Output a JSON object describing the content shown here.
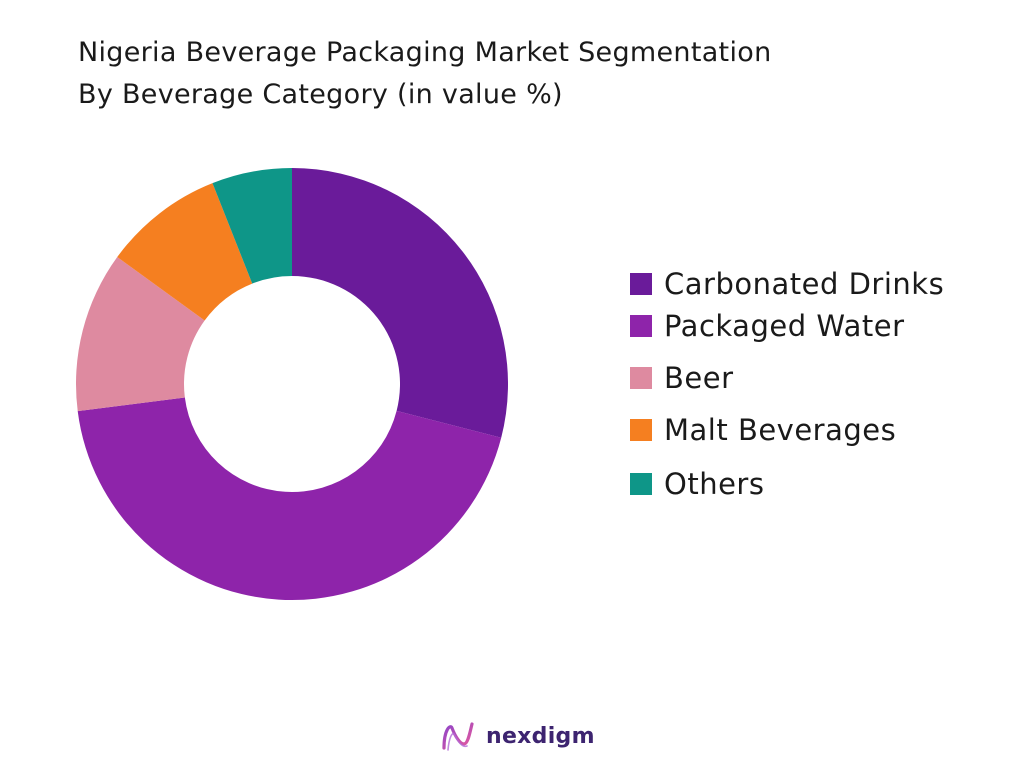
{
  "chart_data": {
    "type": "pie",
    "variant": "donut",
    "title": "Nigeria Beverage Packaging Market Segmentation",
    "subtitle": "By Beverage Category (in value %)",
    "categories": [
      "Carbonated Drinks",
      "Packaged Water",
      "Beer",
      "Malt Beverages",
      "Others"
    ],
    "values": [
      29,
      44,
      12,
      9,
      6
    ],
    "colors": [
      "#6a1b9a",
      "#8e24aa",
      "#de8aa0",
      "#f57f20",
      "#0e9688"
    ],
    "legend_position": "right"
  },
  "brand": {
    "name": "nexdigm",
    "icon": "nexdigm-logo-icon"
  }
}
